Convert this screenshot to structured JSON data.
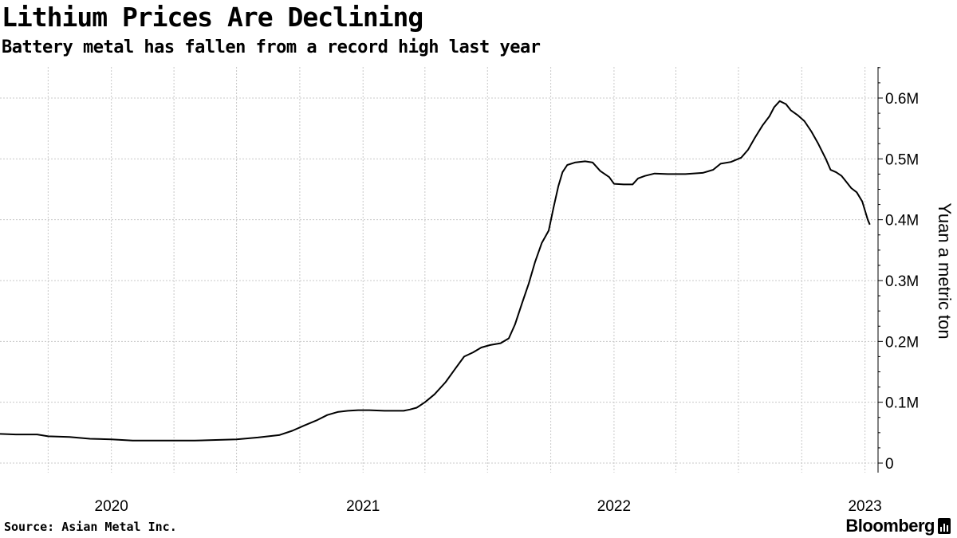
{
  "header": {
    "title": "Lithium Prices Are Declining",
    "subtitle": "Battery metal has fallen from a record high last year"
  },
  "footer": {
    "source": "Source: Asian Metal Inc.",
    "brand": "Bloomberg",
    "brand_icon": "bloomberg-terminal-icon"
  },
  "chart_data": {
    "type": "line",
    "title": "Lithium Prices Are Declining",
    "subtitle": "Battery metal has fallen from a record high last year",
    "ylabel": "Yuan a metric ton",
    "xlabel": "",
    "ylim": [
      0,
      650000
    ],
    "xlim": [
      "2019-07-23",
      "2023-01-20"
    ],
    "y_axis_position": "right",
    "grid": true,
    "legend": "none",
    "line_color": "#000000",
    "y_ticks": [
      {
        "value": 0,
        "label": "0"
      },
      {
        "value": 100000,
        "label": "0.1M"
      },
      {
        "value": 200000,
        "label": "0.2M"
      },
      {
        "value": 300000,
        "label": "0.3M"
      },
      {
        "value": 400000,
        "label": "0.4M"
      },
      {
        "value": 500000,
        "label": "0.5M"
      },
      {
        "value": 600000,
        "label": "0.6M"
      }
    ],
    "x_gridlines": [
      "2019-10-01",
      "2020-01-01",
      "2020-04-01",
      "2020-07-01",
      "2020-10-01",
      "2021-01-01",
      "2021-04-01",
      "2021-07-01",
      "2021-10-01",
      "2022-01-01",
      "2022-04-01",
      "2022-07-01",
      "2022-10-01",
      "2023-01-01"
    ],
    "x_ticks": [
      {
        "date": "2020-01-01",
        "label": "2020"
      },
      {
        "date": "2021-01-01",
        "label": "2021"
      },
      {
        "date": "2022-01-01",
        "label": "2022"
      },
      {
        "date": "2023-01-01",
        "label": "2023"
      }
    ],
    "series": [
      {
        "points": [
          [
            "2019-07-23",
            48000
          ],
          [
            "2019-08-15",
            47000
          ],
          [
            "2019-09-15",
            47000
          ],
          [
            "2019-10-01",
            44000
          ],
          [
            "2019-11-01",
            43000
          ],
          [
            "2019-12-01",
            40000
          ],
          [
            "2020-01-01",
            39000
          ],
          [
            "2020-02-01",
            37000
          ],
          [
            "2020-03-01",
            37000
          ],
          [
            "2020-04-01",
            37000
          ],
          [
            "2020-05-01",
            37000
          ],
          [
            "2020-06-01",
            38000
          ],
          [
            "2020-07-01",
            39000
          ],
          [
            "2020-08-01",
            42000
          ],
          [
            "2020-09-01",
            46000
          ],
          [
            "2020-09-20",
            53000
          ],
          [
            "2020-10-10",
            63000
          ],
          [
            "2020-10-25",
            70000
          ],
          [
            "2020-11-10",
            79000
          ],
          [
            "2020-11-25",
            84000
          ],
          [
            "2020-12-10",
            86000
          ],
          [
            "2020-12-25",
            87000
          ],
          [
            "2021-01-10",
            87000
          ],
          [
            "2021-02-01",
            86000
          ],
          [
            "2021-02-20",
            86000
          ],
          [
            "2021-03-01",
            86000
          ],
          [
            "2021-03-10",
            88000
          ],
          [
            "2021-03-20",
            91000
          ],
          [
            "2021-04-01",
            100000
          ],
          [
            "2021-04-15",
            113000
          ],
          [
            "2021-05-01",
            133000
          ],
          [
            "2021-05-15",
            155000
          ],
          [
            "2021-05-28",
            175000
          ],
          [
            "2021-06-10",
            182000
          ],
          [
            "2021-06-22",
            190000
          ],
          [
            "2021-07-05",
            194000
          ],
          [
            "2021-07-20",
            197000
          ],
          [
            "2021-08-01",
            205000
          ],
          [
            "2021-08-10",
            228000
          ],
          [
            "2021-08-20",
            262000
          ],
          [
            "2021-08-30",
            295000
          ],
          [
            "2021-09-08",
            330000
          ],
          [
            "2021-09-18",
            362000
          ],
          [
            "2021-09-28",
            382000
          ],
          [
            "2021-10-05",
            420000
          ],
          [
            "2021-10-12",
            455000
          ],
          [
            "2021-10-18",
            478000
          ],
          [
            "2021-10-25",
            490000
          ],
          [
            "2021-11-05",
            494000
          ],
          [
            "2021-11-20",
            496000
          ],
          [
            "2021-12-01",
            494000
          ],
          [
            "2021-12-12",
            480000
          ],
          [
            "2021-12-25",
            470000
          ],
          [
            "2022-01-01",
            459000
          ],
          [
            "2022-01-15",
            458000
          ],
          [
            "2022-01-28",
            458000
          ],
          [
            "2022-02-05",
            468000
          ],
          [
            "2022-02-15",
            472000
          ],
          [
            "2022-03-01",
            476000
          ],
          [
            "2022-03-20",
            475000
          ],
          [
            "2022-04-15",
            475000
          ],
          [
            "2022-05-10",
            477000
          ],
          [
            "2022-05-25",
            482000
          ],
          [
            "2022-06-05",
            492000
          ],
          [
            "2022-06-20",
            495000
          ],
          [
            "2022-07-05",
            502000
          ],
          [
            "2022-07-15",
            515000
          ],
          [
            "2022-07-25",
            535000
          ],
          [
            "2022-08-05",
            555000
          ],
          [
            "2022-08-15",
            570000
          ],
          [
            "2022-08-22",
            585000
          ],
          [
            "2022-08-30",
            595000
          ],
          [
            "2022-09-08",
            590000
          ],
          [
            "2022-09-15",
            580000
          ],
          [
            "2022-09-25",
            572000
          ],
          [
            "2022-10-05",
            562000
          ],
          [
            "2022-10-15",
            545000
          ],
          [
            "2022-10-25",
            525000
          ],
          [
            "2022-11-05",
            500000
          ],
          [
            "2022-11-12",
            482000
          ],
          [
            "2022-11-20",
            478000
          ],
          [
            "2022-11-28",
            472000
          ],
          [
            "2022-12-05",
            462000
          ],
          [
            "2022-12-12",
            452000
          ],
          [
            "2022-12-20",
            445000
          ],
          [
            "2022-12-28",
            430000
          ],
          [
            "2023-01-05",
            400000
          ],
          [
            "2023-01-08",
            392000
          ]
        ]
      }
    ]
  }
}
